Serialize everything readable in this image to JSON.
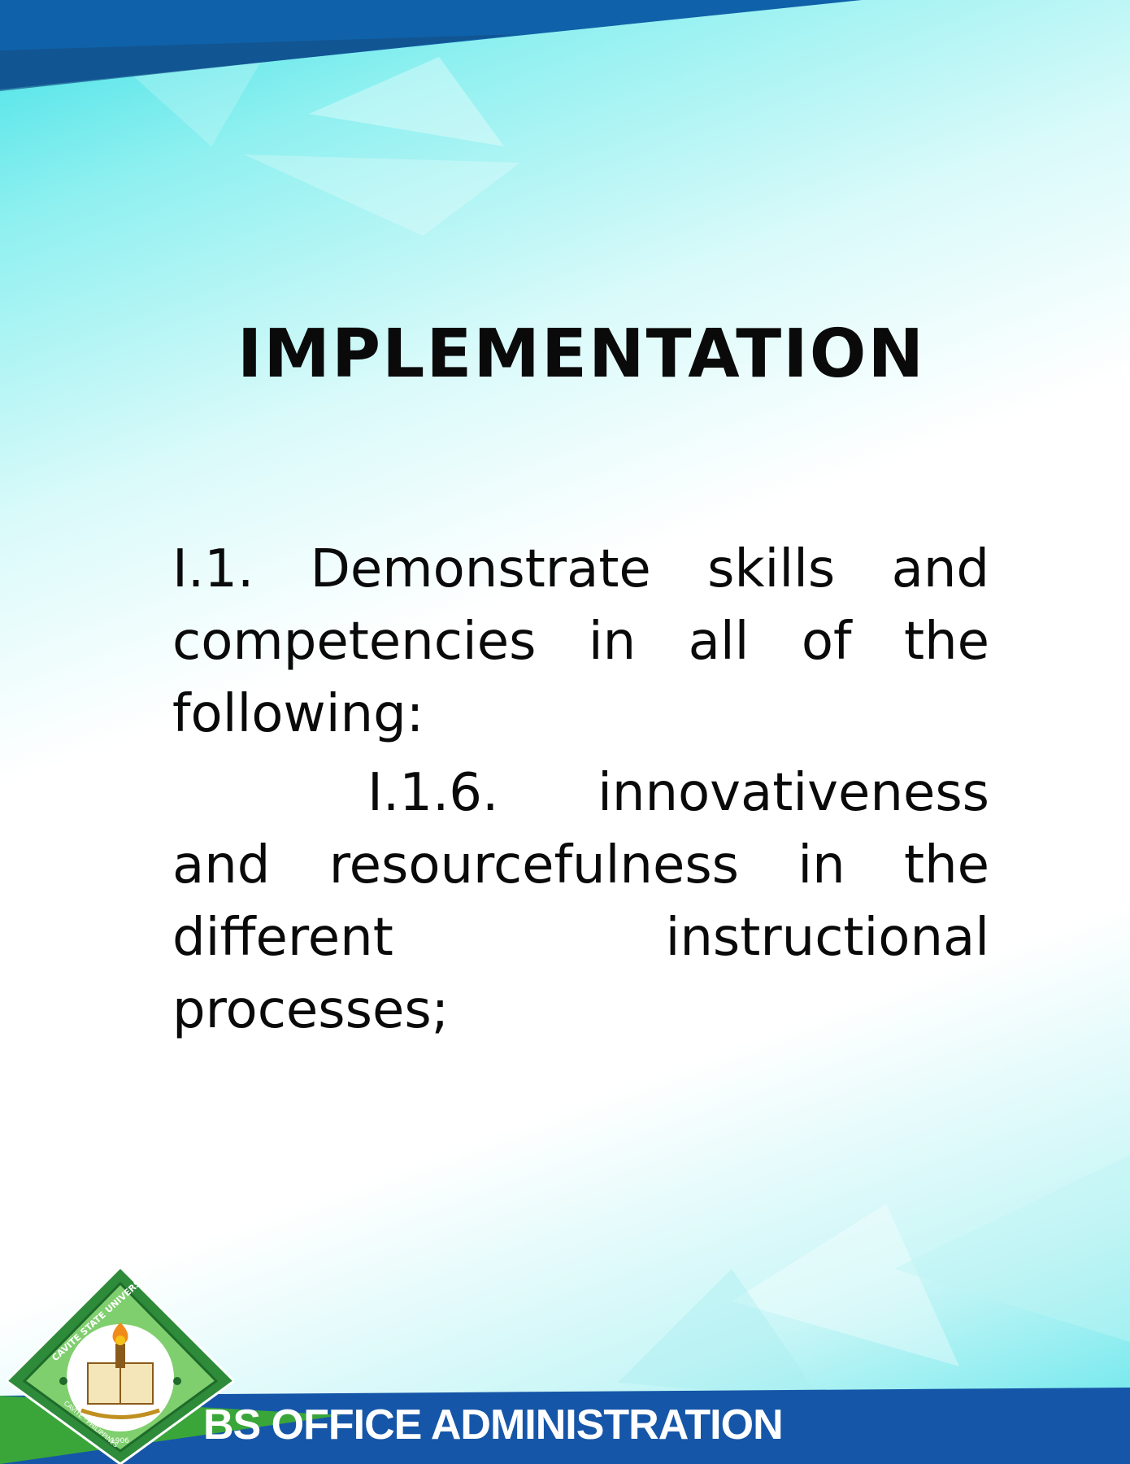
{
  "slide": {
    "title": "IMPLEMENTATION",
    "paragraphs": [
      "I.1. Demonstrate skills and competencies in all of the following:",
      "I.1.6. innovativeness and resourcefulness in the different instructional processes;"
    ]
  },
  "footer": {
    "program": "BS OFFICE ADMINISTRATION"
  },
  "logo": {
    "arc_top": "CAVITE STATE UNIVERSITY",
    "arc_bottom": "CAVITE · PHILIPPINES",
    "year": "1906"
  },
  "colors": {
    "banner_blue": "#0f62a9",
    "footer_green": "#3aa63a",
    "footer_blue": "#1656a8",
    "cyan": "#3fe0e6"
  }
}
